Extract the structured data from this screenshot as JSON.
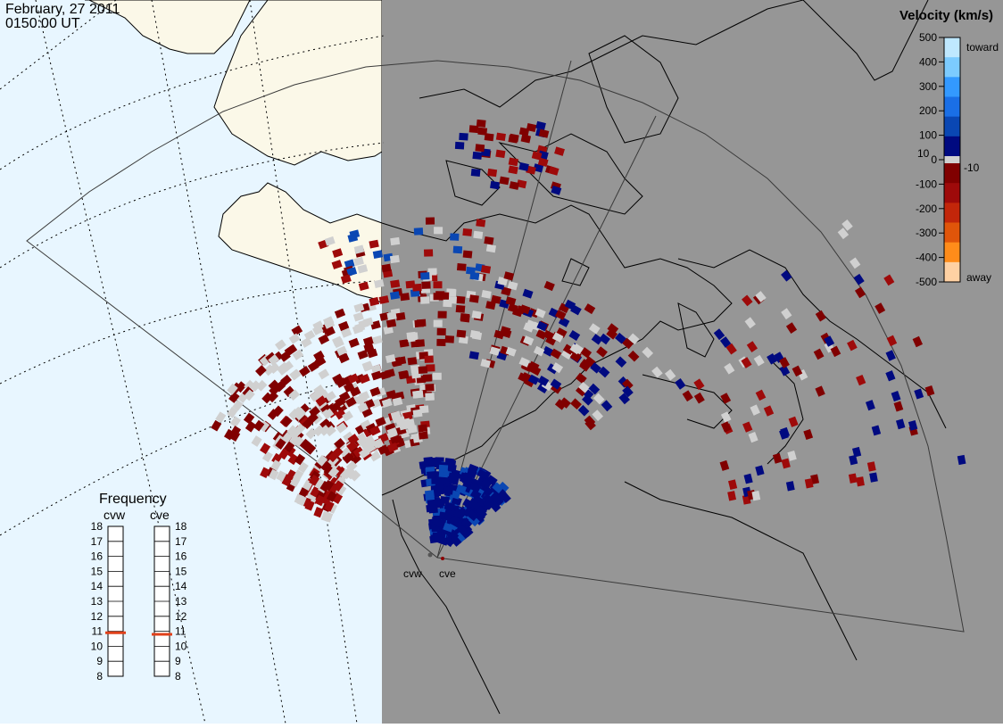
{
  "header": {
    "date": "February, 27 2011",
    "time": "0150:00 UT"
  },
  "radars": [
    {
      "code": "cvw",
      "label": "cvw"
    },
    {
      "code": "cve",
      "label": "cve"
    }
  ],
  "colorbar": {
    "title": "Velocity (km/s)",
    "tick_labels": [
      "500",
      "400",
      "300",
      "200",
      "100",
      "0",
      "-100",
      "-200",
      "-300",
      "-400",
      "-500"
    ],
    "low_mark_labels": [
      "10",
      "-10"
    ],
    "toward_label": "toward",
    "away_label": "away",
    "colors_toward": [
      "#bfe8ff",
      "#7ccbff",
      "#3399ff",
      "#1a6fe6",
      "#0a47b3",
      "#000a80"
    ],
    "colors_away": [
      "#800000",
      "#9e0a0a",
      "#c2260a",
      "#e0550a",
      "#ff8c1a",
      "#ffd1a3"
    ],
    "ground_scatter_color": "#d0d0d0"
  },
  "frequency": {
    "title": "Frequency",
    "columns": [
      "cvw",
      "cve"
    ],
    "scale": [
      "18",
      "17",
      "16",
      "15",
      "14",
      "13",
      "12",
      "11",
      "10",
      "9",
      "8"
    ],
    "values_mhz": {
      "cvw": 10.9,
      "cve": 10.8
    },
    "marker_color": "#e0401a"
  },
  "map": {
    "daylight_color": "#e8f6ff",
    "night_color": "#969696",
    "land_day_color": "#fbf8e8",
    "velocity_cells_toward": "blue",
    "velocity_cells_away": "red"
  }
}
